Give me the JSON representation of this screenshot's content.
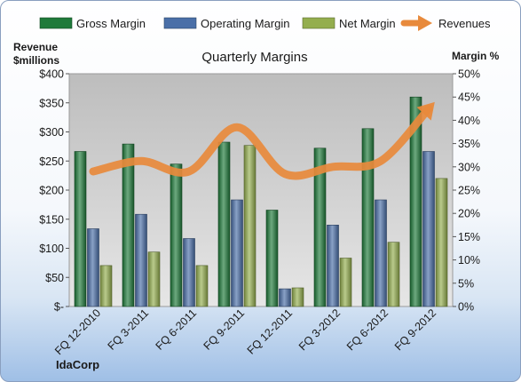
{
  "chart_data": {
    "type": "bar",
    "title": "Quarterly Margins",
    "categories": [
      "FQ 12-2010",
      "FQ 3-2011",
      "FQ 6-2011",
      "FQ 9-2011",
      "FQ 12-2011",
      "FQ 3-2012",
      "FQ 6-2012",
      "FQ 9-2012"
    ],
    "series": [
      {
        "name": "Gross Margin",
        "kind": "bar",
        "axis": "right",
        "unit": "%",
        "color": "#1f7a3a",
        "values": [
          33.3,
          34.9,
          30.6,
          35.3,
          20.7,
          34.0,
          38.2,
          45.0
        ]
      },
      {
        "name": "Operating Margin",
        "kind": "bar",
        "axis": "right",
        "unit": "%",
        "color": "#4a6fa8",
        "values": [
          16.7,
          19.8,
          14.6,
          22.9,
          3.8,
          17.5,
          22.9,
          33.3
        ]
      },
      {
        "name": "Net Margin",
        "kind": "bar",
        "axis": "right",
        "unit": "%",
        "color": "#94ae4e",
        "values": [
          8.8,
          11.7,
          8.8,
          34.6,
          4.0,
          10.4,
          13.8,
          27.5
        ]
      },
      {
        "name": "Revenues",
        "kind": "line",
        "axis": "left",
        "unit": "$ millions",
        "color": "#e88a3c",
        "values": [
          232,
          250,
          232,
          308,
          228,
          240,
          250,
          340
        ]
      }
    ],
    "y_left": {
      "label_line1": "Revenue",
      "label_line2": "$millions",
      "ylim": [
        0,
        400
      ],
      "ticks": [
        "$-",
        "$50",
        "$100",
        "$150",
        "$200",
        "$250",
        "$300",
        "$350",
        "$400"
      ]
    },
    "y_right": {
      "label": "Margin %",
      "ylim": [
        0,
        50
      ],
      "ticks": [
        "0%",
        "5%",
        "10%",
        "15%",
        "20%",
        "25%",
        "30%",
        "35%",
        "40%",
        "45%",
        "50%"
      ]
    },
    "legend_placement": "top",
    "grid": false
  },
  "footer": {
    "company": "IdaCorp"
  }
}
